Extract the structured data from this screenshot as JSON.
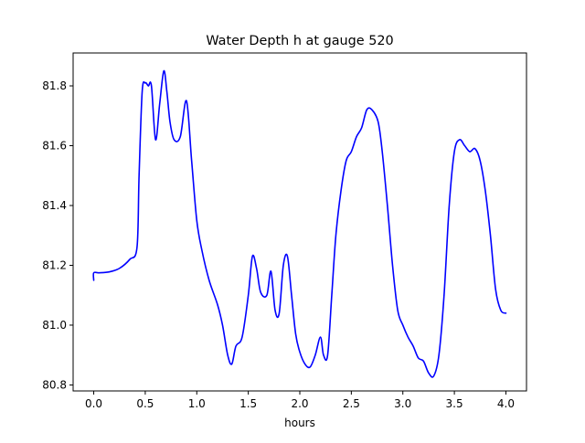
{
  "chart_data": {
    "type": "line",
    "title": "Water Depth h at gauge 520",
    "xlabel": "hours",
    "ylabel": "",
    "xlim": [
      -0.2,
      4.2
    ],
    "ylim": [
      80.78,
      81.91
    ],
    "xticks": [
      0.0,
      0.5,
      1.0,
      1.5,
      2.0,
      2.5,
      3.0,
      3.5,
      4.0
    ],
    "xtick_labels": [
      "0.0",
      "0.5",
      "1.0",
      "1.5",
      "2.0",
      "2.5",
      "3.0",
      "3.5",
      "4.0"
    ],
    "yticks": [
      80.8,
      81.0,
      81.2,
      81.4,
      81.6,
      81.8
    ],
    "ytick_labels": [
      "80.8",
      "81.0",
      "81.2",
      "81.4",
      "81.6",
      "81.8"
    ],
    "grid": false,
    "legend": "none",
    "series": [
      {
        "color": "#0000ff",
        "x": [
          0.0,
          0.0,
          0.05,
          0.15,
          0.25,
          0.35,
          0.42,
          0.44,
          0.47,
          0.5,
          0.53,
          0.56,
          0.6,
          0.64,
          0.68,
          0.71,
          0.74,
          0.78,
          0.84,
          0.9,
          0.95,
          1.0,
          1.05,
          1.12,
          1.2,
          1.25,
          1.3,
          1.34,
          1.38,
          1.44,
          1.5,
          1.54,
          1.58,
          1.62,
          1.68,
          1.72,
          1.76,
          1.8,
          1.84,
          1.88,
          1.92,
          1.96,
          2.0,
          2.05,
          2.1,
          2.15,
          2.2,
          2.23,
          2.27,
          2.31,
          2.35,
          2.4,
          2.45,
          2.5,
          2.55,
          2.6,
          2.65,
          2.7,
          2.76,
          2.8,
          2.85,
          2.9,
          2.95,
          3.0,
          3.05,
          3.1,
          3.15,
          3.2,
          3.25,
          3.3,
          3.35,
          3.4,
          3.45,
          3.5,
          3.55,
          3.6,
          3.65,
          3.7,
          3.75,
          3.8,
          3.85,
          3.9,
          3.95,
          4.0
        ],
        "values": [
          81.15,
          81.175,
          81.175,
          81.178,
          81.19,
          81.22,
          81.26,
          81.5,
          81.78,
          81.81,
          81.8,
          81.8,
          81.62,
          81.74,
          81.85,
          81.78,
          81.68,
          81.62,
          81.63,
          81.75,
          81.55,
          81.35,
          81.25,
          81.15,
          81.07,
          81.0,
          80.9,
          80.87,
          80.93,
          80.96,
          81.1,
          81.23,
          81.19,
          81.11,
          81.1,
          81.18,
          81.05,
          81.04,
          81.2,
          81.23,
          81.1,
          80.97,
          80.91,
          80.87,
          80.86,
          80.9,
          80.96,
          80.9,
          80.9,
          81.1,
          81.3,
          81.45,
          81.55,
          81.58,
          81.63,
          81.66,
          81.72,
          81.72,
          81.68,
          81.58,
          81.4,
          81.2,
          81.05,
          81.0,
          80.96,
          80.93,
          80.89,
          80.88,
          80.84,
          80.83,
          80.9,
          81.1,
          81.4,
          81.58,
          81.62,
          81.6,
          81.58,
          81.59,
          81.55,
          81.45,
          81.3,
          81.12,
          81.05,
          81.04
        ]
      }
    ]
  }
}
